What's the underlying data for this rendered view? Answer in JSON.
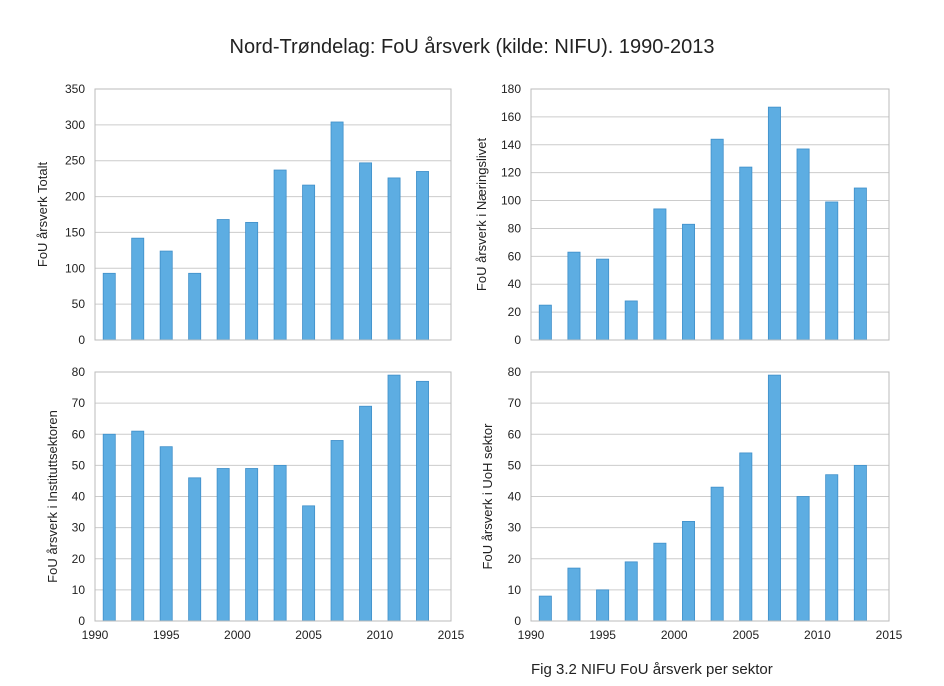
{
  "title": "Nord-Trøndelag: FoU årsverk (kilde: NIFU). 1990-2013",
  "caption": "Fig 3.2 NIFU FoU årsverk per sektor",
  "colors": {
    "bar": "#5dade2",
    "bar_edge": "#3f8fc9",
    "grid": "#cccccc",
    "frame": "#bbbbbb"
  },
  "chart_data": [
    {
      "type": "bar",
      "ylabel": "FoU årsverk Totalt",
      "x": [
        1991,
        1993,
        1995,
        1997,
        1999,
        2001,
        2003,
        2005,
        2007,
        2009,
        2011,
        2013
      ],
      "values": [
        93,
        142,
        124,
        93,
        168,
        164,
        237,
        216,
        304,
        247,
        226,
        235
      ],
      "xlim": [
        1990,
        2015
      ],
      "ylim": [
        0,
        350
      ],
      "xticks": [],
      "yticks": [
        0,
        50,
        100,
        150,
        200,
        250,
        300,
        350
      ],
      "grid": true
    },
    {
      "type": "bar",
      "ylabel": "FoU årsverk i Næringslivet",
      "x": [
        1991,
        1993,
        1995,
        1997,
        1999,
        2001,
        2003,
        2005,
        2007,
        2009,
        2011,
        2013
      ],
      "values": [
        25,
        63,
        58,
        28,
        94,
        83,
        144,
        124,
        167,
        137,
        99,
        109
      ],
      "xlim": [
        1990,
        2015
      ],
      "ylim": [
        0,
        180
      ],
      "xticks": [],
      "yticks": [
        0,
        20,
        40,
        60,
        80,
        100,
        120,
        140,
        160,
        180
      ],
      "grid": true
    },
    {
      "type": "bar",
      "ylabel": "FoU årsverk i Instituttsektoren",
      "x": [
        1991,
        1993,
        1995,
        1997,
        1999,
        2001,
        2003,
        2005,
        2007,
        2009,
        2011,
        2013
      ],
      "values": [
        60,
        61,
        56,
        46,
        49,
        49,
        50,
        37,
        58,
        69,
        79,
        77
      ],
      "xlim": [
        1990,
        2015
      ],
      "ylim": [
        0,
        80
      ],
      "xticks": [
        1990,
        1995,
        2000,
        2005,
        2010,
        2015
      ],
      "yticks": [
        0,
        10,
        20,
        30,
        40,
        50,
        60,
        70,
        80
      ],
      "grid": true
    },
    {
      "type": "bar",
      "ylabel": "FoU årsverk i UoH sektor",
      "x": [
        1991,
        1993,
        1995,
        1997,
        1999,
        2001,
        2003,
        2005,
        2007,
        2009,
        2011,
        2013
      ],
      "values": [
        8,
        17,
        10,
        19,
        25,
        32,
        43,
        54,
        79,
        40,
        47,
        50
      ],
      "xlim": [
        1990,
        2015
      ],
      "ylim": [
        0,
        80
      ],
      "xticks": [
        1990,
        1995,
        2000,
        2005,
        2010,
        2015
      ],
      "yticks": [
        0,
        10,
        20,
        30,
        40,
        50,
        60,
        70,
        80
      ],
      "grid": true
    }
  ]
}
